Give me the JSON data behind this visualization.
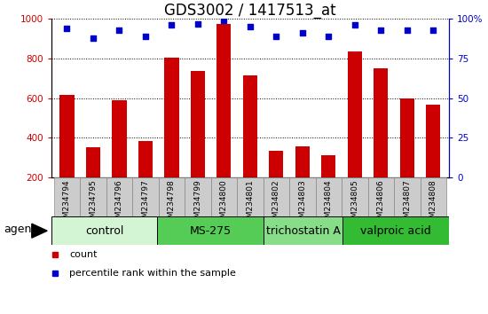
{
  "title": "GDS3002 / 1417513_at",
  "samples": [
    "GSM234794",
    "GSM234795",
    "GSM234796",
    "GSM234797",
    "GSM234798",
    "GSM234799",
    "GSM234800",
    "GSM234801",
    "GSM234802",
    "GSM234803",
    "GSM234804",
    "GSM234805",
    "GSM234806",
    "GSM234807",
    "GSM234808"
  ],
  "counts": [
    615,
    350,
    590,
    385,
    805,
    735,
    975,
    715,
    335,
    355,
    310,
    835,
    750,
    600,
    565
  ],
  "percentiles": [
    94,
    88,
    93,
    89,
    96,
    97,
    99,
    95,
    89,
    91,
    89,
    96,
    93,
    93,
    93
  ],
  "groups": [
    {
      "label": "control",
      "start": 0,
      "end": 4,
      "color": "#d4f5d4"
    },
    {
      "label": "MS-275",
      "start": 4,
      "end": 8,
      "color": "#55cc55"
    },
    {
      "label": "trichostatin A",
      "start": 8,
      "end": 11,
      "color": "#88dd88"
    },
    {
      "label": "valproic acid",
      "start": 11,
      "end": 15,
      "color": "#33bb33"
    }
  ],
  "bar_color": "#cc0000",
  "dot_color": "#0000cc",
  "ylim_left": [
    200,
    1000
  ],
  "ylim_right": [
    0,
    100
  ],
  "yticks_left": [
    200,
    400,
    600,
    800,
    1000
  ],
  "yticks_right": [
    0,
    25,
    50,
    75,
    100
  ],
  "yticklabels_right": [
    "0",
    "25",
    "50",
    "75",
    "100%"
  ],
  "bar_width": 0.55,
  "title_fontsize": 12,
  "tick_fontsize": 7.5,
  "legend_fontsize": 8,
  "group_fontsize": 9,
  "agent_fontsize": 9,
  "sample_cell_color": "#cccccc",
  "sample_cell_edge": "#888888"
}
